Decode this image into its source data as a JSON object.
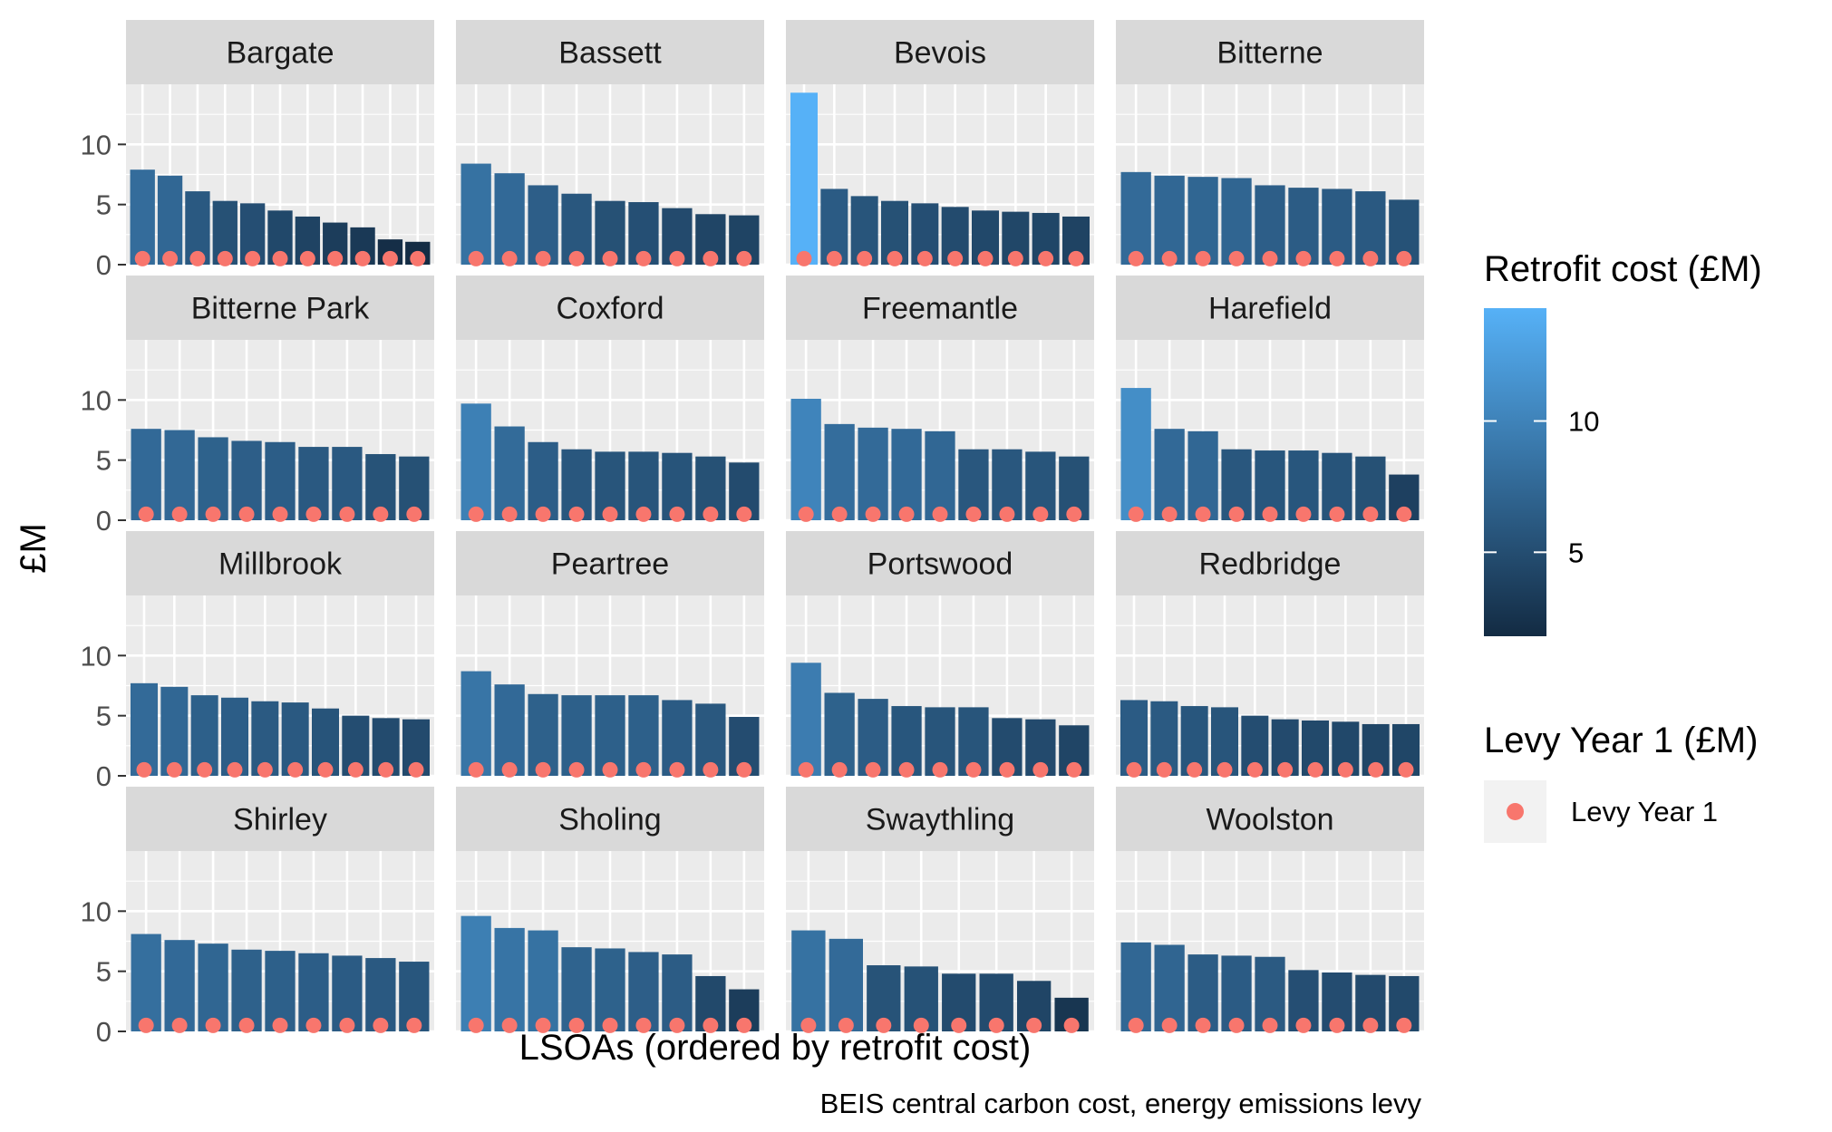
{
  "chart_data": {
    "type": "bar",
    "xlabel": "LSOAs (ordered by retrofit cost)",
    "ylabel": "£M",
    "caption": "BEIS central carbon cost, energy emissions levy",
    "ylim": [
      0,
      15
    ],
    "yticks": [
      0,
      5,
      10
    ],
    "grid": true,
    "facet_layout": "4x4",
    "colors": {
      "panel_bg": "#EBEBEB",
      "strip_bg": "#D9D9D9",
      "grid": "#FFFFFF",
      "levy_point": "#F8766D",
      "gradient_low": "#132B43",
      "gradient_high": "#56B1F7"
    },
    "fill_legend": {
      "title": "Retrofit cost (£M)",
      "range": [
        1.8,
        14.3
      ],
      "ticks": [
        5,
        10
      ]
    },
    "point_legend": {
      "title": "Levy Year 1 (£M)",
      "label": "Levy Year 1"
    },
    "facets": [
      {
        "name": "Bargate",
        "retrofit_cost": [
          7.9,
          7.4,
          6.1,
          5.3,
          5.1,
          4.5,
          4.0,
          3.5,
          3.1,
          2.1,
          1.9
        ],
        "levy_year_1": [
          0.5,
          0.5,
          0.5,
          0.5,
          0.5,
          0.5,
          0.5,
          0.5,
          0.5,
          0.5,
          0.5
        ]
      },
      {
        "name": "Bassett",
        "retrofit_cost": [
          8.4,
          7.6,
          6.6,
          5.9,
          5.3,
          5.2,
          4.7,
          4.2,
          4.1
        ],
        "levy_year_1": [
          0.5,
          0.5,
          0.5,
          0.5,
          0.5,
          0.5,
          0.5,
          0.5,
          0.5
        ]
      },
      {
        "name": "Bevois",
        "retrofit_cost": [
          14.3,
          6.3,
          5.7,
          5.3,
          5.1,
          4.8,
          4.5,
          4.4,
          4.3,
          4.0
        ],
        "levy_year_1": [
          0.5,
          0.5,
          0.5,
          0.5,
          0.5,
          0.5,
          0.5,
          0.5,
          0.5,
          0.5
        ]
      },
      {
        "name": "Bitterne",
        "retrofit_cost": [
          7.7,
          7.4,
          7.3,
          7.2,
          6.6,
          6.4,
          6.3,
          6.1,
          5.4
        ],
        "levy_year_1": [
          0.5,
          0.5,
          0.5,
          0.5,
          0.5,
          0.5,
          0.5,
          0.5,
          0.5
        ]
      },
      {
        "name": "Bitterne Park",
        "retrofit_cost": [
          7.6,
          7.5,
          6.9,
          6.6,
          6.5,
          6.1,
          6.1,
          5.5,
          5.3
        ],
        "levy_year_1": [
          0.5,
          0.5,
          0.5,
          0.5,
          0.5,
          0.5,
          0.5,
          0.5,
          0.5
        ]
      },
      {
        "name": "Coxford",
        "retrofit_cost": [
          9.7,
          7.8,
          6.5,
          5.9,
          5.7,
          5.7,
          5.6,
          5.3,
          4.8
        ],
        "levy_year_1": [
          0.5,
          0.5,
          0.5,
          0.5,
          0.5,
          0.5,
          0.5,
          0.5,
          0.5
        ]
      },
      {
        "name": "Freemantle",
        "retrofit_cost": [
          10.1,
          8.0,
          7.7,
          7.6,
          7.4,
          5.9,
          5.9,
          5.7,
          5.3
        ],
        "levy_year_1": [
          0.5,
          0.5,
          0.5,
          0.5,
          0.5,
          0.5,
          0.5,
          0.5,
          0.5
        ]
      },
      {
        "name": "Harefield",
        "retrofit_cost": [
          11.0,
          7.6,
          7.4,
          5.9,
          5.8,
          5.8,
          5.6,
          5.3,
          3.8
        ],
        "levy_year_1": [
          0.5,
          0.5,
          0.5,
          0.5,
          0.5,
          0.5,
          0.5,
          0.5,
          0.5
        ]
      },
      {
        "name": "Millbrook",
        "retrofit_cost": [
          7.7,
          7.4,
          6.7,
          6.5,
          6.2,
          6.1,
          5.6,
          5.0,
          4.8,
          4.7
        ],
        "levy_year_1": [
          0.5,
          0.5,
          0.5,
          0.5,
          0.5,
          0.5,
          0.5,
          0.5,
          0.5,
          0.5
        ]
      },
      {
        "name": "Peartree",
        "retrofit_cost": [
          8.7,
          7.6,
          6.8,
          6.7,
          6.7,
          6.7,
          6.3,
          6.0,
          4.9
        ],
        "levy_year_1": [
          0.5,
          0.5,
          0.5,
          0.5,
          0.5,
          0.5,
          0.5,
          0.5,
          0.5
        ]
      },
      {
        "name": "Portswood",
        "retrofit_cost": [
          9.4,
          6.9,
          6.4,
          5.8,
          5.7,
          5.7,
          4.8,
          4.7,
          4.2
        ],
        "levy_year_1": [
          0.5,
          0.5,
          0.5,
          0.5,
          0.5,
          0.5,
          0.5,
          0.5,
          0.5
        ]
      },
      {
        "name": "Redbridge",
        "retrofit_cost": [
          6.3,
          6.2,
          5.8,
          5.7,
          5.0,
          4.7,
          4.6,
          4.5,
          4.3,
          4.3
        ],
        "levy_year_1": [
          0.5,
          0.5,
          0.5,
          0.5,
          0.5,
          0.5,
          0.5,
          0.5,
          0.5,
          0.5
        ]
      },
      {
        "name": "Shirley",
        "retrofit_cost": [
          8.1,
          7.6,
          7.3,
          6.8,
          6.7,
          6.5,
          6.3,
          6.1,
          5.8
        ],
        "levy_year_1": [
          0.5,
          0.5,
          0.5,
          0.5,
          0.5,
          0.5,
          0.5,
          0.5,
          0.5
        ]
      },
      {
        "name": "Sholing",
        "retrofit_cost": [
          9.6,
          8.6,
          8.4,
          7.0,
          6.9,
          6.6,
          6.4,
          4.6,
          3.5
        ],
        "levy_year_1": [
          0.5,
          0.5,
          0.5,
          0.5,
          0.5,
          0.5,
          0.5,
          0.5,
          0.5
        ]
      },
      {
        "name": "Swaythling",
        "retrofit_cost": [
          8.4,
          7.7,
          5.5,
          5.4,
          4.8,
          4.8,
          4.2,
          2.8
        ],
        "levy_year_1": [
          0.5,
          0.5,
          0.5,
          0.5,
          0.5,
          0.5,
          0.5,
          0.5
        ]
      },
      {
        "name": "Woolston",
        "retrofit_cost": [
          7.4,
          7.2,
          6.4,
          6.3,
          6.2,
          5.1,
          4.9,
          4.7,
          4.6
        ],
        "levy_year_1": [
          0.5,
          0.5,
          0.5,
          0.5,
          0.5,
          0.5,
          0.5,
          0.5,
          0.5
        ]
      }
    ]
  }
}
